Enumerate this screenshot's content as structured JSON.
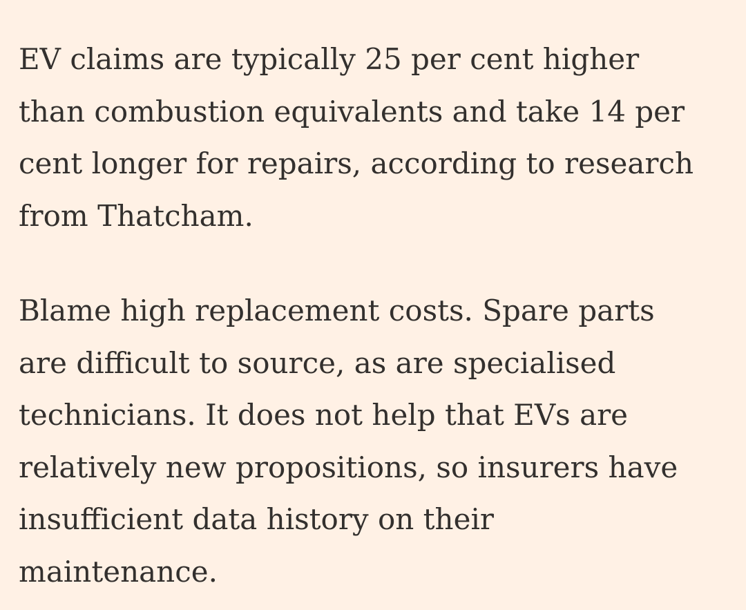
{
  "article": {
    "paragraphs": [
      {
        "lines": [
          "EV claims are typically 25 per cent higher",
          "than combustion equivalents and take 14 per",
          "cent longer for repairs, according to research",
          "from Thatcham."
        ]
      },
      {
        "lines": [
          "Blame high replacement costs. Spare parts",
          "are difficult to source, as are specialised",
          "technicians. It does not help that EVs are",
          "relatively new propositions, so insurers have",
          "insufficient data history on their",
          "maintenance."
        ]
      }
    ]
  },
  "colors": {
    "background": "#fff1e5",
    "text": "#33302e"
  }
}
